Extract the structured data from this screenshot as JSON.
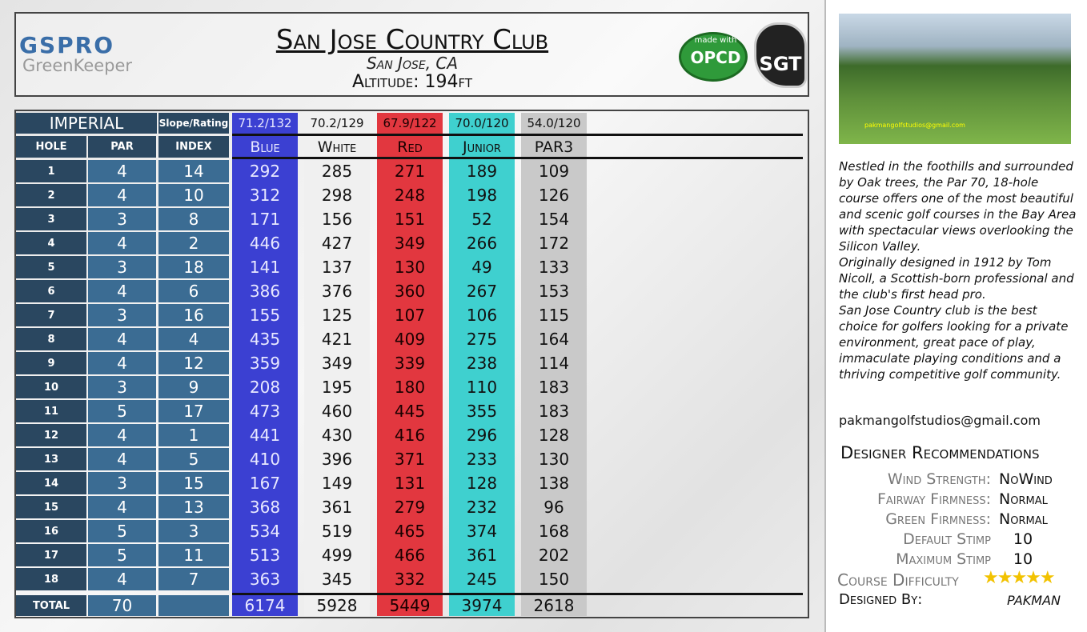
{
  "header": {
    "brand": "GSPRO",
    "brand_sub": "GreenKeeper",
    "title": "San Jose Country Club",
    "subtitle": "San Jose, CA",
    "altitude": "Altitude: 194ft",
    "logo_opcd_top": "made with",
    "logo_opcd": "OPCD",
    "logo_sgt": "SGT"
  },
  "table": {
    "unit": "IMPERIAL",
    "slope_label": "Slope/Rating",
    "columns": [
      "HOLE",
      "PAR",
      "INDEX"
    ],
    "tees": [
      {
        "name": "Blue",
        "rating": "71.2/132",
        "color": "#3b40d2"
      },
      {
        "name": "White",
        "rating": "70.2/129",
        "color": "#f0f0f0"
      },
      {
        "name": "Red",
        "rating": "67.9/122",
        "color": "#e2373f"
      },
      {
        "name": "Junior",
        "rating": "70.0/120",
        "color": "#3fd0cf"
      },
      {
        "name": "PAR3",
        "rating": "54.0/120",
        "color": "#c9c9c9"
      }
    ],
    "rows": [
      {
        "hole": 1,
        "par": 4,
        "index": 14,
        "yards": [
          292,
          285,
          271,
          189,
          109
        ]
      },
      {
        "hole": 2,
        "par": 4,
        "index": 10,
        "yards": [
          312,
          298,
          248,
          198,
          126
        ]
      },
      {
        "hole": 3,
        "par": 3,
        "index": 8,
        "yards": [
          171,
          156,
          151,
          52,
          154
        ]
      },
      {
        "hole": 4,
        "par": 4,
        "index": 2,
        "yards": [
          446,
          427,
          349,
          266,
          172
        ]
      },
      {
        "hole": 5,
        "par": 3,
        "index": 18,
        "yards": [
          141,
          137,
          130,
          49,
          133
        ]
      },
      {
        "hole": 6,
        "par": 4,
        "index": 6,
        "yards": [
          386,
          376,
          360,
          267,
          153
        ]
      },
      {
        "hole": 7,
        "par": 3,
        "index": 16,
        "yards": [
          155,
          125,
          107,
          106,
          115
        ]
      },
      {
        "hole": 8,
        "par": 4,
        "index": 4,
        "yards": [
          435,
          421,
          409,
          275,
          164
        ]
      },
      {
        "hole": 9,
        "par": 4,
        "index": 12,
        "yards": [
          359,
          349,
          339,
          238,
          114
        ]
      },
      {
        "hole": 10,
        "par": 3,
        "index": 9,
        "yards": [
          208,
          195,
          180,
          110,
          183
        ]
      },
      {
        "hole": 11,
        "par": 5,
        "index": 17,
        "yards": [
          473,
          460,
          445,
          355,
          183
        ]
      },
      {
        "hole": 12,
        "par": 4,
        "index": 1,
        "yards": [
          441,
          430,
          416,
          296,
          128
        ]
      },
      {
        "hole": 13,
        "par": 4,
        "index": 5,
        "yards": [
          410,
          396,
          371,
          233,
          130
        ]
      },
      {
        "hole": 14,
        "par": 3,
        "index": 15,
        "yards": [
          167,
          149,
          131,
          128,
          138
        ]
      },
      {
        "hole": 15,
        "par": 4,
        "index": 13,
        "yards": [
          368,
          361,
          279,
          232,
          96
        ]
      },
      {
        "hole": 16,
        "par": 5,
        "index": 3,
        "yards": [
          534,
          519,
          465,
          374,
          168
        ]
      },
      {
        "hole": 17,
        "par": 5,
        "index": 11,
        "yards": [
          513,
          499,
          466,
          361,
          202
        ]
      },
      {
        "hole": 18,
        "par": 4,
        "index": 7,
        "yards": [
          363,
          345,
          332,
          245,
          150
        ]
      }
    ],
    "total": {
      "label": "TOTAL",
      "par": 70,
      "yards": [
        6174,
        5928,
        5449,
        3974,
        2618
      ]
    }
  },
  "side": {
    "photo_caption": "pakmangolfstudios@gmail.com",
    "description": [
      "Nestled in the foothills and surrounded by Oak trees, the Par 70, 18-hole course offers one of the most beautiful and scenic golf courses in the Bay Area with spectacular views overlooking the Silicon Valley.",
      "Originally designed in 1912 by Tom Nicoll, a Scottish-born professional and the club's first head pro.",
      "San Jose Country club is the best choice for golfers looking for a private environment, great pace of play, immaculate playing conditions and a thriving competitive golf community."
    ],
    "email": "pakmangolfstudios@gmail.com",
    "rec_title": "Designer Recommendations",
    "settings": [
      {
        "label": "Wind Strength:",
        "value": "NoWind"
      },
      {
        "label": "Fairway Firmness:",
        "value": "Normal"
      },
      {
        "label": "Green Firmness:",
        "value": "Normal"
      },
      {
        "label": "Default Stimp",
        "value": 10
      },
      {
        "label": "Maximum Stimp",
        "value": 10
      }
    ],
    "difficulty_label": "Course Difficulty",
    "designed_by_label": "Designed By:",
    "designed_by": "PAKMAN"
  }
}
